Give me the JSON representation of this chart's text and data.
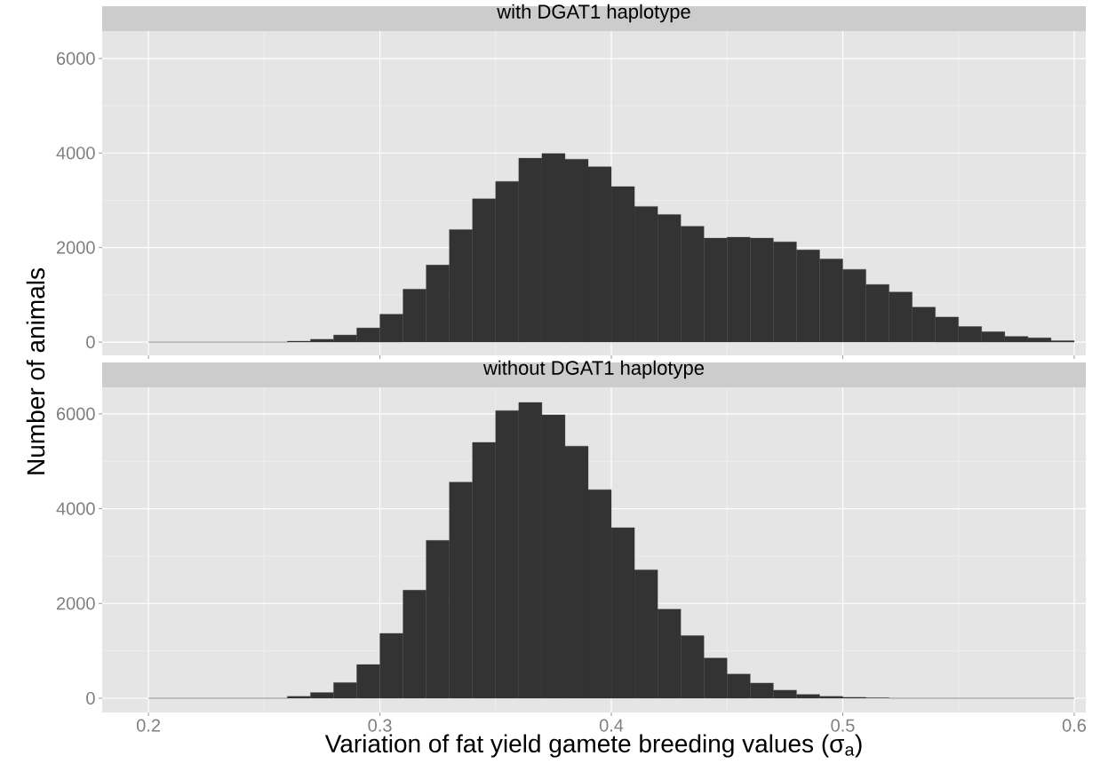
{
  "chart_data": [
    {
      "type": "histogram",
      "title": "with DGAT1 haplotype",
      "bins": [
        0.2,
        0.21,
        0.22,
        0.23,
        0.24,
        0.25,
        0.26,
        0.27,
        0.28,
        0.29,
        0.3,
        0.31,
        0.32,
        0.33,
        0.34,
        0.35,
        0.36,
        0.37,
        0.38,
        0.39,
        0.4,
        0.41,
        0.42,
        0.43,
        0.44,
        0.45,
        0.46,
        0.47,
        0.48,
        0.49,
        0.5,
        0.51,
        0.52,
        0.53,
        0.54,
        0.55,
        0.56,
        0.57,
        0.58,
        0.59,
        0.6
      ],
      "values": [
        0,
        0,
        0,
        0,
        0,
        0,
        20,
        60,
        150,
        300,
        590,
        1120,
        1630,
        2380,
        3030,
        3400,
        3890,
        3990,
        3870,
        3710,
        3290,
        2870,
        2700,
        2450,
        2200,
        2220,
        2200,
        2120,
        1950,
        1760,
        1540,
        1220,
        1060,
        740,
        530,
        330,
        220,
        120,
        90,
        30
      ],
      "color": "#333333",
      "xlim": [
        0.18,
        0.605
      ],
      "ylim": [
        -280,
        6580
      ],
      "xticks": [
        0.2,
        0.3,
        0.4,
        0.5,
        0.6
      ],
      "yticks": [
        0,
        2000,
        4000,
        6000
      ],
      "grid": true,
      "tick_labels": "y"
    },
    {
      "type": "histogram",
      "title": "without DGAT1 haplotype",
      "xlabel": "Variation of fat yield gamete breeding values (σ$_{a}$)",
      "ylabel": "Number of animals",
      "bins": [
        0.2,
        0.21,
        0.22,
        0.23,
        0.24,
        0.25,
        0.26,
        0.27,
        0.28,
        0.29,
        0.3,
        0.31,
        0.32,
        0.33,
        0.34,
        0.35,
        0.36,
        0.37,
        0.38,
        0.39,
        0.4,
        0.41,
        0.42,
        0.43,
        0.44,
        0.45,
        0.46,
        0.47,
        0.48,
        0.49,
        0.5,
        0.51,
        0.52,
        0.53,
        0.54,
        0.55,
        0.56,
        0.57,
        0.58,
        0.59,
        0.6
      ],
      "values": [
        0,
        0,
        0,
        0,
        0,
        0,
        40,
        120,
        330,
        710,
        1370,
        2280,
        3330,
        4560,
        5400,
        6070,
        6240,
        5980,
        5320,
        4400,
        3600,
        2710,
        1880,
        1320,
        850,
        510,
        320,
        170,
        80,
        40,
        20,
        10,
        0,
        0,
        0,
        0,
        0,
        0,
        0,
        0
      ],
      "color": "#333333",
      "xlim": [
        0.18,
        0.605
      ],
      "ylim": [
        -300,
        6560
      ],
      "xticks": [
        0.2,
        0.3,
        0.4,
        0.5,
        0.6
      ],
      "yticks": [
        0,
        2000,
        4000,
        6000
      ],
      "grid": true
    }
  ]
}
